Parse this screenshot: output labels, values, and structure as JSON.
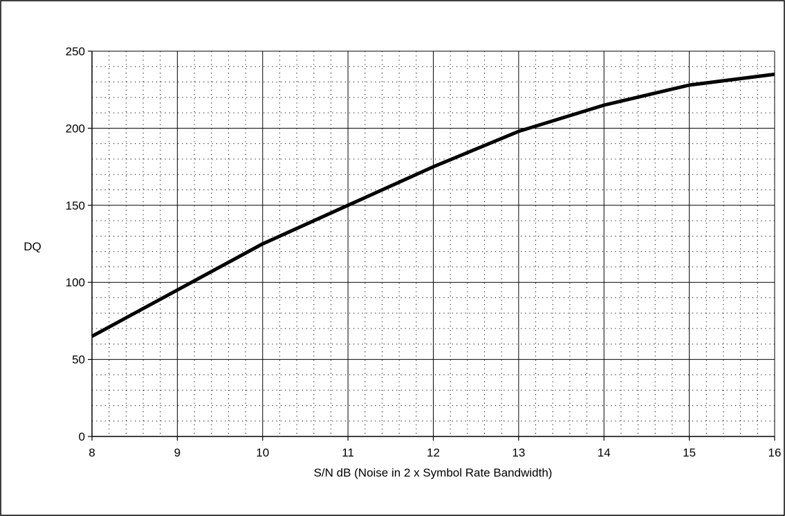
{
  "chart_data": {
    "type": "line",
    "title": "",
    "xlabel": "S/N dB (Noise in 2 x Symbol Rate Bandwidth)",
    "ylabel": "DQ",
    "xlim": [
      8,
      16
    ],
    "ylim": [
      0,
      250
    ],
    "x_ticks": [
      "8",
      "9",
      "10",
      "11",
      "12",
      "13",
      "14",
      "15",
      "16"
    ],
    "y_ticks": [
      "0",
      "50",
      "100",
      "150",
      "200",
      "250"
    ],
    "major_grid": true,
    "minor_grid": "dotted",
    "legend": "none",
    "series": [
      {
        "x": [
          8,
          9,
          10,
          11,
          12,
          13,
          14,
          15,
          16
        ],
        "values": [
          65,
          95,
          125,
          150,
          175,
          198,
          215,
          228,
          235
        ],
        "color": "#000000"
      }
    ]
  }
}
